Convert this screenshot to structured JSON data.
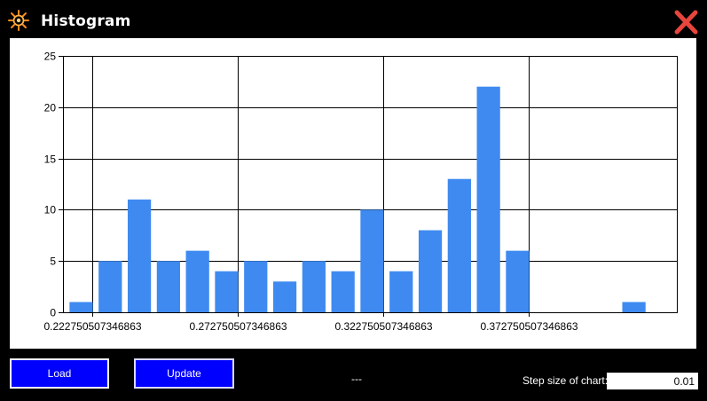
{
  "window": {
    "title": "Histogram",
    "icon": "sun-gear-icon",
    "close_icon": "close-x-icon",
    "close_color": "#e8453c"
  },
  "controls": {
    "load_label": "Load",
    "update_label": "Update",
    "status_text": "---",
    "step_label": "Step size of chart:",
    "step_value": "0.01",
    "button_color": "#0000ff"
  },
  "chart_data": {
    "type": "bar",
    "x_tick_labels": [
      "0.222750507346863",
      "0.272750507346863",
      "0.322750507346863",
      "0.372750507346863"
    ],
    "x_ticks": [
      0.222750507346863,
      0.272750507346863,
      0.322750507346863,
      0.372750507346863
    ],
    "x": [
      0.219,
      0.229,
      0.239,
      0.249,
      0.259,
      0.269,
      0.279,
      0.289,
      0.299,
      0.309,
      0.319,
      0.329,
      0.339,
      0.349,
      0.359,
      0.369,
      0.379,
      0.389,
      0.399,
      0.409
    ],
    "values": [
      1,
      5,
      11,
      5,
      6,
      4,
      5,
      3,
      5,
      4,
      10,
      4,
      8,
      13,
      22,
      6,
      0,
      0,
      0,
      1
    ],
    "ylim": [
      0,
      25
    ],
    "y_ticks": [
      0,
      5,
      10,
      15,
      20,
      25
    ],
    "grid": true,
    "bar_color": "#3f8af0",
    "title": "",
    "xlabel": "",
    "ylabel": ""
  }
}
